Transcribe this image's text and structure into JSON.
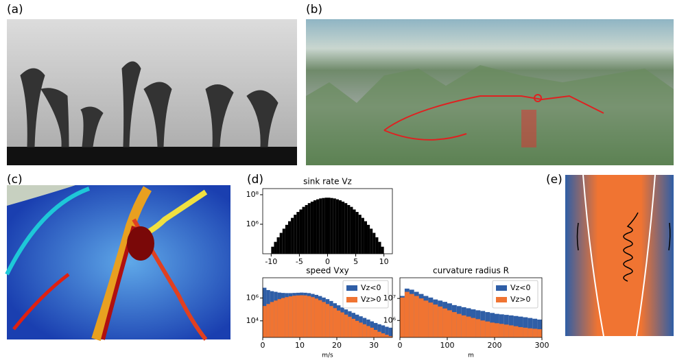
{
  "panel_labels": [
    "(a)",
    "(b)",
    "(c)",
    "(d)",
    "(e)"
  ],
  "chart_data": [
    {
      "type": "histogram",
      "title": "sink rate Vz",
      "log_y": true,
      "color": "#000000",
      "bins": [
        -10,
        -9.5,
        -9,
        -8.5,
        -8,
        -7.5,
        -7,
        -6.5,
        -6,
        -5.5,
        -5,
        -4.5,
        -4,
        -3.5,
        -3,
        -2.5,
        -2,
        -1.5,
        -1,
        -0.5,
        0,
        0.5,
        1,
        1.5,
        2,
        2.5,
        3,
        3.5,
        4,
        4.5,
        5,
        5.5,
        6,
        6.5,
        7,
        7.5,
        8,
        8.5,
        9,
        9.5,
        10
      ],
      "values": [
        30000,
        64000,
        130000,
        260000,
        500000,
        910000,
        1600000,
        2700000,
        4400000,
        6800000,
        10000000,
        15000000,
        20000000,
        27000000,
        34000000,
        42000000,
        49000000,
        56000000,
        60000000,
        63000000,
        63000000,
        60000000,
        56000000,
        49000000,
        42000000,
        34000000,
        27000000,
        20000000,
        15000000,
        10000000,
        6800000,
        4400000,
        2700000,
        1600000,
        910000,
        500000,
        260000,
        130000,
        64000,
        30000
      ],
      "xlim": [
        -11.5,
        11.5
      ],
      "xticks": [
        -10,
        -5,
        0,
        5,
        10
      ],
      "ylim": [
        10000,
        260000000
      ],
      "yticks": [
        {
          "value": 1000000,
          "label": "10⁶"
        },
        {
          "value": 100000000,
          "label": "10⁸"
        }
      ]
    },
    {
      "type": "histogram",
      "title": "speed Vxy",
      "xlabel": "m/s",
      "log_y": true,
      "legend": "upper right",
      "bins": [
        0,
        1,
        2,
        3,
        4,
        5,
        6,
        7,
        8,
        9,
        10,
        11,
        12,
        13,
        14,
        15,
        16,
        17,
        18,
        19,
        20,
        21,
        22,
        23,
        24,
        25,
        26,
        27,
        28,
        29,
        30,
        31,
        32,
        33,
        34,
        35
      ],
      "series": [
        {
          "name": "Vz<0",
          "color": "#2f5ea6",
          "values": [
            8000000,
            5000000,
            4000000,
            3500000,
            3000000,
            2800000,
            2700000,
            2700000,
            2800000,
            2900000,
            3000000,
            2900000,
            2700000,
            2300000,
            1900000,
            1500000,
            1100000,
            800000,
            550000,
            350000,
            230000,
            150000,
            100000,
            70000,
            50000,
            35000,
            25000,
            18000,
            13000,
            9000,
            6500,
            5000,
            4000,
            3000,
            2500
          ]
        },
        {
          "name": "Vz>0",
          "color": "#f07432",
          "values": [
            200000,
            300000,
            450000,
            600000,
            800000,
            1000000,
            1200000,
            1400000,
            1600000,
            1700000,
            1750000,
            1700000,
            1500000,
            1200000,
            900000,
            650000,
            450000,
            300000,
            200000,
            130000,
            80000,
            55000,
            35000,
            23000,
            15000,
            10000,
            7000,
            5000,
            3500,
            2500,
            1600,
            1100,
            800,
            600,
            450
          ]
        }
      ],
      "xlim": [
        0,
        35
      ],
      "xticks": [
        0,
        10,
        20,
        30
      ],
      "ylim": [
        350,
        60000000
      ],
      "yticks": [
        {
          "value": 10000,
          "label": "10⁴"
        },
        {
          "value": 1000000,
          "label": "10⁶"
        }
      ]
    },
    {
      "type": "histogram",
      "title": "curvature radius R",
      "xlabel": "m",
      "log_y": true,
      "legend": "upper right",
      "bins": [
        0,
        10,
        20,
        30,
        40,
        50,
        60,
        70,
        80,
        90,
        100,
        110,
        120,
        130,
        140,
        150,
        160,
        170,
        180,
        190,
        200,
        210,
        220,
        230,
        240,
        250,
        260,
        270,
        280,
        290,
        300
      ],
      "series": [
        {
          "name": "Vz<0",
          "color": "#2f5ea6",
          "values": [
            13000000,
            28000000,
            25000000,
            20000000,
            16000000,
            13000000,
            11000000,
            9000000,
            8000000,
            7000000,
            6000000,
            5000000,
            4500000,
            4000000,
            3600000,
            3200000,
            2900000,
            2700000,
            2400000,
            2200000,
            2000000,
            1900000,
            1800000,
            1700000,
            1600000,
            1500000,
            1400000,
            1300000,
            1200000,
            1100000
          ]
        },
        {
          "name": "Vz>0",
          "color": "#f07432",
          "values": [
            11000000,
            20000000,
            16000000,
            13000000,
            10000000,
            8000000,
            6500000,
            5300000,
            4300000,
            3500000,
            2900000,
            2400000,
            2000000,
            1700000,
            1500000,
            1300000,
            1150000,
            1000000,
            900000,
            800000,
            750000,
            700000,
            650000,
            600000,
            550000,
            500000,
            470000,
            440000,
            420000,
            400000
          ]
        }
      ],
      "xlim": [
        0,
        300
      ],
      "xticks": [
        0,
        100,
        200,
        300
      ],
      "ylim": [
        170000,
        87000000
      ],
      "yticks": [
        {
          "value": 1000000,
          "label": "10⁶"
        },
        {
          "value": 10000000,
          "label": "10⁷"
        }
      ]
    }
  ]
}
